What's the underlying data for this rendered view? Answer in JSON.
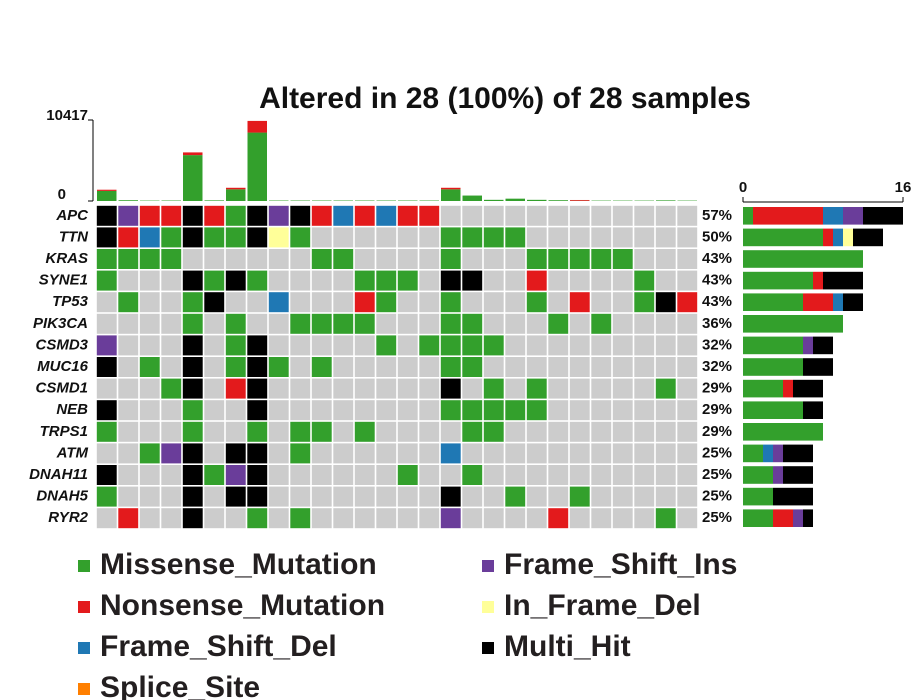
{
  "chart_data": {
    "type": "oncoplot",
    "title": "Altered in 28 (100%) of 28 samples",
    "legend": [
      {
        "name": "Missense_Mutation",
        "color": "#33a02c"
      },
      {
        "name": "Nonsense_Mutation",
        "color": "#e31a1c"
      },
      {
        "name": "Frame_Shift_Del",
        "color": "#1f78b4"
      },
      {
        "name": "Splice_Site",
        "color": "#ff7f00"
      },
      {
        "name": "Frame_Shift_Ins",
        "color": "#6a3d9a"
      },
      {
        "name": "In_Frame_Del",
        "color": "#ffff99"
      },
      {
        "name": "Multi_Hit",
        "color": "#000000"
      }
    ],
    "genes": [
      "APC",
      "TTN",
      "KRAS",
      "SYNE1",
      "TP53",
      "PIK3CA",
      "CSMD3",
      "MUC16",
      "CSMD1",
      "NEB",
      "TRPS1",
      "ATM",
      "DNAH11",
      "DNAH5",
      "RYR2"
    ],
    "percent": [
      57,
      50,
      43,
      43,
      43,
      36,
      32,
      32,
      29,
      29,
      29,
      25,
      25,
      25,
      25
    ],
    "percent_labels": [
      "57%",
      "50%",
      "43%",
      "43%",
      "43%",
      "36%",
      "32%",
      "32%",
      "29%",
      "29%",
      "29%",
      "25%",
      "25%",
      "25%",
      "25%"
    ],
    "matrix": [
      [
        6,
        4,
        1,
        1,
        6,
        1,
        0,
        6,
        4,
        6,
        1,
        2,
        1,
        2,
        1,
        1,
        null,
        null,
        null,
        null,
        null,
        null,
        null,
        null,
        null,
        null,
        null,
        null
      ],
      [
        6,
        1,
        2,
        0,
        6,
        0,
        0,
        6,
        5,
        0,
        null,
        null,
        null,
        null,
        null,
        null,
        0,
        0,
        0,
        0,
        null,
        null,
        null,
        null,
        null,
        null,
        null,
        null
      ],
      [
        0,
        0,
        0,
        0,
        null,
        null,
        null,
        null,
        null,
        null,
        0,
        0,
        null,
        null,
        null,
        null,
        0,
        null,
        null,
        null,
        0,
        0,
        0,
        0,
        0,
        null,
        null,
        null
      ],
      [
        0,
        null,
        null,
        null,
        6,
        0,
        6,
        0,
        null,
        null,
        null,
        null,
        0,
        0,
        0,
        null,
        6,
        6,
        null,
        null,
        1,
        null,
        null,
        null,
        null,
        0,
        null,
        null
      ],
      [
        null,
        0,
        null,
        null,
        0,
        6,
        null,
        null,
        2,
        null,
        null,
        null,
        1,
        0,
        null,
        null,
        0,
        null,
        null,
        null,
        0,
        null,
        1,
        null,
        null,
        0,
        6,
        1
      ],
      [
        null,
        null,
        null,
        null,
        0,
        null,
        0,
        null,
        null,
        0,
        0,
        0,
        0,
        null,
        null,
        null,
        0,
        0,
        null,
        null,
        null,
        0,
        null,
        0,
        null,
        null,
        null,
        null
      ],
      [
        4,
        null,
        null,
        null,
        6,
        null,
        0,
        6,
        null,
        null,
        null,
        null,
        null,
        0,
        null,
        0,
        0,
        0,
        0,
        null,
        null,
        null,
        null,
        null,
        null,
        null,
        null,
        null
      ],
      [
        6,
        null,
        0,
        null,
        6,
        null,
        0,
        6,
        0,
        null,
        0,
        null,
        null,
        null,
        null,
        null,
        0,
        0,
        null,
        null,
        null,
        null,
        null,
        null,
        null,
        null,
        null,
        null
      ],
      [
        null,
        null,
        null,
        0,
        6,
        null,
        1,
        6,
        null,
        null,
        null,
        null,
        null,
        null,
        null,
        null,
        6,
        null,
        0,
        null,
        0,
        null,
        null,
        null,
        null,
        null,
        0,
        null
      ],
      [
        6,
        null,
        null,
        null,
        0,
        null,
        null,
        6,
        null,
        null,
        null,
        null,
        null,
        null,
        null,
        null,
        0,
        0,
        0,
        0,
        0,
        null,
        null,
        null,
        null,
        null,
        null,
        null
      ],
      [
        0,
        null,
        null,
        null,
        0,
        null,
        null,
        0,
        null,
        0,
        0,
        null,
        0,
        null,
        null,
        null,
        null,
        0,
        0,
        null,
        null,
        null,
        null,
        null,
        null,
        null,
        null,
        null
      ],
      [
        null,
        null,
        0,
        4,
        6,
        null,
        6,
        6,
        null,
        0,
        null,
        null,
        null,
        null,
        null,
        null,
        2,
        null,
        null,
        null,
        null,
        null,
        null,
        null,
        null,
        null,
        null,
        null
      ],
      [
        6,
        null,
        null,
        null,
        6,
        0,
        4,
        6,
        null,
        null,
        null,
        null,
        null,
        null,
        0,
        null,
        null,
        0,
        null,
        null,
        null,
        null,
        null,
        null,
        null,
        null,
        null,
        null
      ],
      [
        0,
        null,
        null,
        null,
        6,
        null,
        6,
        6,
        null,
        null,
        null,
        null,
        null,
        null,
        null,
        null,
        6,
        null,
        null,
        0,
        null,
        null,
        0,
        null,
        null,
        null,
        null,
        null
      ],
      [
        null,
        1,
        null,
        null,
        6,
        null,
        null,
        0,
        null,
        0,
        null,
        null,
        null,
        null,
        null,
        null,
        4,
        null,
        null,
        null,
        null,
        1,
        null,
        null,
        null,
        null,
        0,
        null
      ]
    ],
    "top_bars": {
      "ylim": [
        0,
        10417
      ],
      "yticks": [
        0,
        10417
      ],
      "series": [
        {
          "class": 0,
          "values": [
            1300,
            100,
            50,
            60,
            5900,
            80,
            1500,
            8800,
            60,
            60,
            60,
            60,
            60,
            60,
            60,
            60,
            1500,
            700,
            150,
            300,
            150,
            100,
            30,
            50,
            50,
            50,
            80,
            50
          ]
        },
        {
          "class": 1,
          "values": [
            150,
            0,
            0,
            0,
            350,
            0,
            200,
            1500,
            0,
            0,
            0,
            0,
            0,
            0,
            0,
            0,
            200,
            0,
            0,
            0,
            0,
            0,
            100,
            0,
            0,
            0,
            0,
            0
          ]
        }
      ]
    },
    "side_bars": {
      "xlim": [
        0,
        16
      ],
      "xticks": [
        0,
        16
      ]
    }
  }
}
